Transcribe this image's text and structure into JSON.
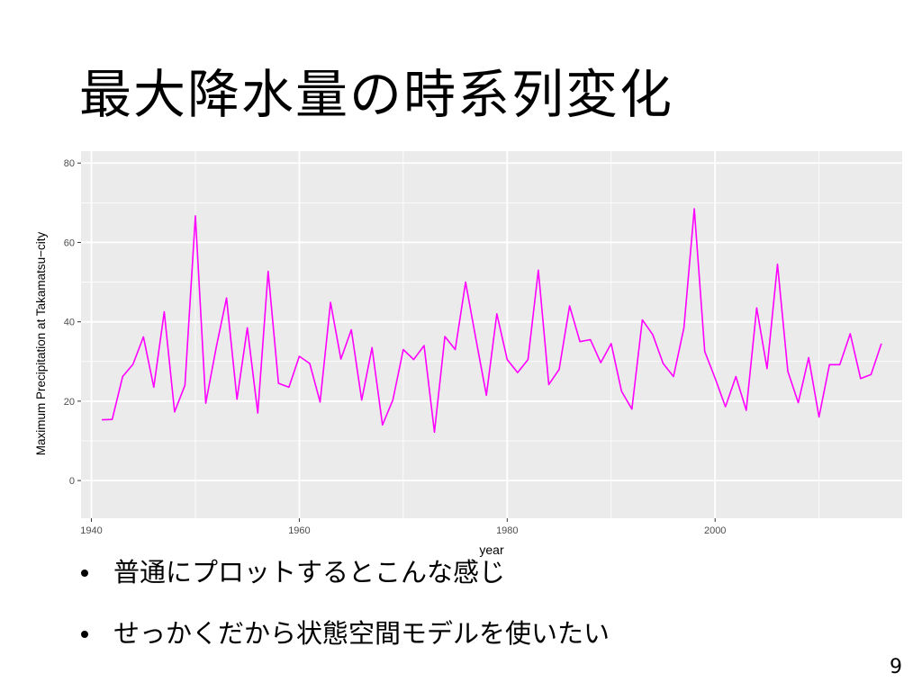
{
  "slide": {
    "title": "最大降水量の時系列変化",
    "bullets": [
      "普通にプロットするとこんな感じ",
      "せっかくだから状態空間モデルを使いたい"
    ],
    "page_number": "9"
  },
  "chart_data": {
    "type": "line",
    "xlabel": "year",
    "ylabel": "Maximum Precipitation at Takamatsu−city",
    "xlim": [
      1939,
      2018
    ],
    "ylim": [
      -9.5,
      83
    ],
    "xticks": [
      1940,
      1960,
      1980,
      2000
    ],
    "yticks": [
      0,
      20,
      40,
      60,
      80
    ],
    "grid": true,
    "line_color": "#ff00ff",
    "panel_color": "#ebebeb",
    "x": [
      1941,
      1942,
      1943,
      1944,
      1945,
      1946,
      1947,
      1948,
      1949,
      1950,
      1951,
      1952,
      1953,
      1954,
      1955,
      1956,
      1957,
      1958,
      1959,
      1960,
      1961,
      1962,
      1963,
      1964,
      1965,
      1966,
      1967,
      1968,
      1969,
      1970,
      1971,
      1972,
      1973,
      1974,
      1975,
      1976,
      1977,
      1978,
      1979,
      1980,
      1981,
      1982,
      1983,
      1984,
      1985,
      1986,
      1987,
      1988,
      1989,
      1990,
      1991,
      1992,
      1993,
      1994,
      1995,
      1996,
      1997,
      1998,
      1999,
      2000,
      2001,
      2002,
      2003,
      2004,
      2005,
      2006,
      2007,
      2008,
      2009,
      2010,
      2011,
      2012,
      2013,
      2014,
      2015,
      2016
    ],
    "values": [
      15.3,
      15.4,
      26.2,
      29.3,
      36.2,
      23.5,
      42.5,
      17.3,
      24.0,
      66.7,
      19.5,
      33.5,
      46.0,
      20.5,
      38.5,
      17.0,
      52.7,
      24.5,
      23.5,
      31.3,
      29.5,
      19.8,
      44.9,
      30.6,
      38.0,
      20.3,
      33.5,
      14.0,
      20.3,
      33.0,
      30.5,
      34.0,
      12.2,
      36.3,
      33.0,
      50.0,
      35.5,
      21.5,
      42.0,
      30.5,
      27.2,
      30.5,
      53.0,
      24.2,
      28.0,
      44.0,
      35.0,
      35.5,
      29.7,
      34.5,
      22.5,
      18.0,
      40.5,
      36.8,
      29.5,
      26.2,
      38.5,
      68.5,
      32.5,
      25.8,
      18.6,
      26.2,
      17.7,
      43.5,
      28.2,
      54.5,
      27.5,
      19.6,
      31.0,
      16.0,
      29.2,
      29.2,
      37.0,
      25.7,
      26.7,
      34.5
    ]
  }
}
